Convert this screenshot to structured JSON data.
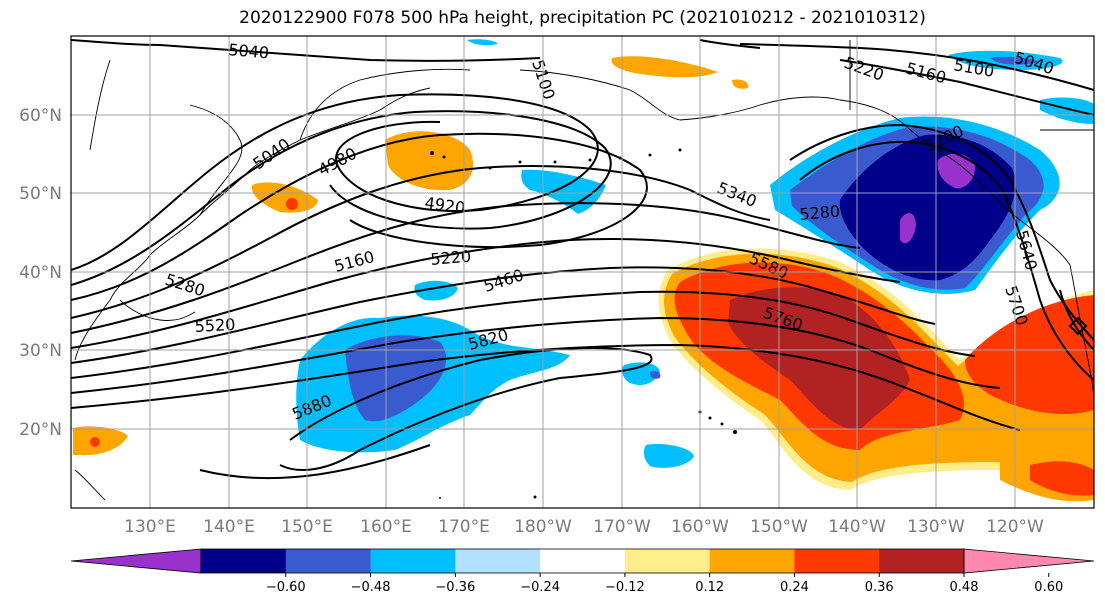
{
  "title": "2020122900 F078 500 hPa height, precipitation PC (2021010212 - 2021010312)",
  "lat_labels": [
    "60°N",
    "50°N",
    "40°N",
    "30°N",
    "20°N"
  ],
  "lon_labels": [
    "130°E",
    "140°E",
    "150°E",
    "160°E",
    "170°E",
    "180°W",
    "170°W",
    "160°W",
    "150°W",
    "140°W",
    "130°W",
    "120°W"
  ],
  "contour_labels": [
    "5040",
    "5100",
    "5220",
    "5160",
    "5100",
    "5040",
    "4980",
    "5040",
    "4920",
    "5340",
    "5280",
    "5200",
    "5640",
    "5700",
    "5160",
    "5220",
    "5460",
    "5280",
    "5520",
    "5580",
    "5760",
    "5820",
    "5880"
  ],
  "colorbar": {
    "ticks": [
      "−0.60",
      "−0.48",
      "−0.36",
      "−0.24",
      "−0.12",
      "0.12",
      "0.24",
      "0.36",
      "0.48",
      "0.60"
    ],
    "colors": [
      "#9932cc",
      "#00008b",
      "#3a5bd0",
      "#00bfff",
      "#b0e2ff",
      "#ffffff",
      "#ffec8b",
      "#ffa500",
      "#ff3800",
      "#b22222",
      "#ff88b0"
    ]
  }
}
